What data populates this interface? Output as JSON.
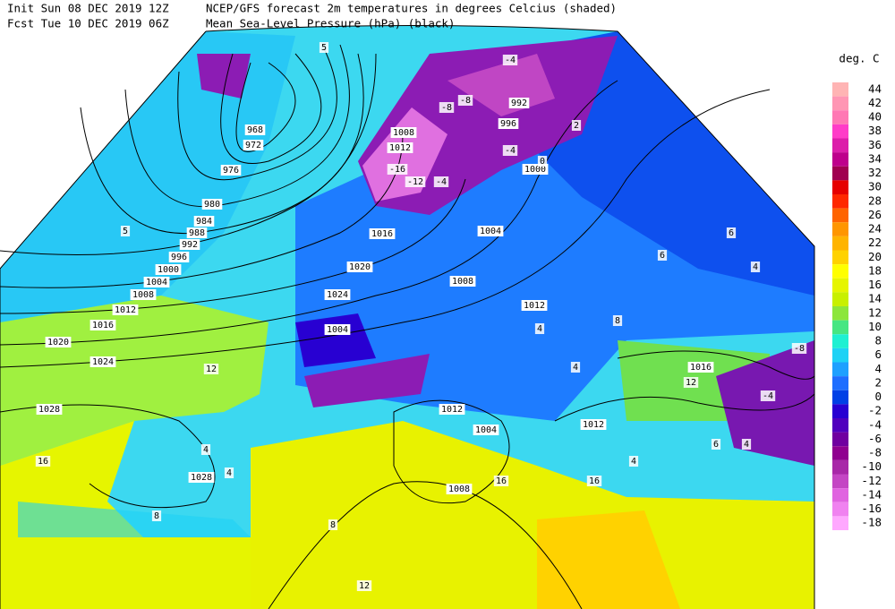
{
  "header": {
    "init": "Init  Sun 08 DEC 2019 12Z",
    "fcst": "Fcst Tue 10 DEC 2019 06Z",
    "title": "NCEP/GFS forecast 2m temperatures in degrees Celcius (shaded)",
    "subtitle": "Mean Sea-Level Pressure (hPa) (black)"
  },
  "legend": {
    "unit": "deg. C",
    "levels": [
      44,
      42,
      40,
      38,
      36,
      34,
      32,
      30,
      28,
      26,
      24,
      22,
      20,
      18,
      16,
      14,
      12,
      10,
      8,
      6,
      4,
      2,
      0,
      -2,
      -4,
      -6,
      -8,
      -10,
      -12,
      -14,
      -16,
      -18
    ],
    "colors": [
      "#ffb4b4",
      "#ff96b4",
      "#ff78b4",
      "#ff3cc8",
      "#dc1eaa",
      "#be008c",
      "#a00050",
      "#e60000",
      "#ff2800",
      "#ff6400",
      "#ff9600",
      "#ffb400",
      "#ffd200",
      "#ffff00",
      "#e6f500",
      "#c8f000",
      "#8ce63c",
      "#46e682",
      "#1ef0d2",
      "#1ed2f5",
      "#1ea0ff",
      "#1e6eff",
      "#0040e6",
      "#2800d2",
      "#5000be",
      "#7000a0",
      "#900090",
      "#a828a8",
      "#c446c4",
      "#e064e0",
      "#f082f0",
      "#ffa8ff"
    ]
  },
  "isobar_labels": [
    968,
    972,
    976,
    980,
    984,
    988,
    992,
    996,
    1000,
    1004,
    1008,
    1012,
    1016,
    1020,
    1024,
    1028,
    1028,
    1020,
    1024,
    1004,
    1008,
    1012,
    1016,
    1012,
    1012,
    1004,
    1000,
    992,
    996,
    1008,
    1012,
    1016,
    1008,
    1004
  ],
  "temperature_labels": [
    -4,
    -8,
    -8,
    -16,
    -12,
    -4,
    -4,
    5,
    5,
    2,
    0,
    6,
    6,
    4,
    8,
    12,
    16,
    4,
    4,
    12,
    -4,
    -8,
    4,
    4,
    8,
    8,
    12,
    16,
    16,
    4,
    6,
    4
  ]
}
